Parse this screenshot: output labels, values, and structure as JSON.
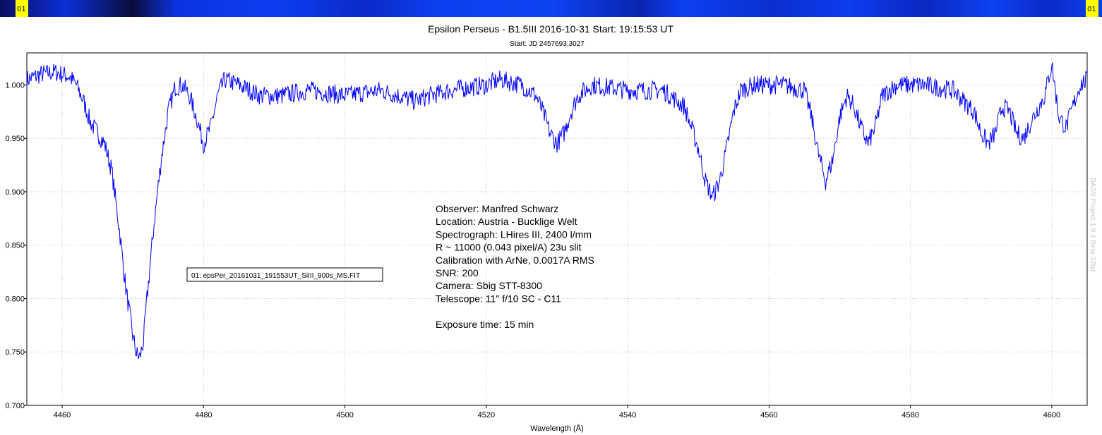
{
  "header": {
    "badge_left": "01",
    "badge_right": "01"
  },
  "watermark": "BASS Project 1.9.4 Beta 32bit",
  "legend": {
    "label": "01: epsPer_20161031_191553UT_SiIII_900s_MS.FIT"
  },
  "info_lines": [
    "Observer: Manfred Schwarz",
    "Location: Austria - Bucklige Welt",
    "Spectrograph: LHires III, 2400 l/mm",
    "R ~ 11000 (0.043 pixel/A) 23u slit",
    "Calibration with ArNe, 0.0017A RMS",
    "SNR: 200",
    "Camera: Sbig STT-8300",
    "Telescope: 11\" f/10 SC - C11",
    "",
    "Exposure time: 15 min"
  ],
  "colors": {
    "series": "#0000ff",
    "badge": "#ffff00"
  },
  "chart_data": {
    "type": "line",
    "title": "Epsilon Perseus - B1.5III 2016-10-31 Start: 19:15:53 UT",
    "subtitle": "Start: JD 2457693,3027",
    "xlabel": "Wavelength (Å)",
    "ylabel": "",
    "xlim": [
      4455,
      4605
    ],
    "ylim": [
      0.7,
      1.03
    ],
    "grid": true,
    "x_ticks": [
      4460,
      4480,
      4500,
      4520,
      4540,
      4560,
      4580,
      4600
    ],
    "x_tick_labels": [
      "4460",
      "4480",
      "4500",
      "4520",
      "4540",
      "4560",
      "4580",
      "4600"
    ],
    "y_ticks": [
      0.7,
      0.75,
      0.8,
      0.85,
      0.9,
      0.95,
      1.0
    ],
    "y_tick_labels": [
      "0.700",
      "0.750",
      "0.800",
      "0.850",
      "0.900",
      "0.950",
      "1.000"
    ],
    "series": [
      {
        "name": "01: epsPer_20161031_191553UT_SiIII_900s_MS.FIT",
        "x": [
          4455,
          4457,
          4459,
          4461,
          4462,
          4463,
          4464,
          4465,
          4466,
          4467,
          4468,
          4469,
          4470,
          4470.5,
          4471,
          4471.5,
          4472,
          4473,
          4474,
          4475,
          4476,
          4477,
          4478,
          4479,
          4480,
          4481,
          4482,
          4483,
          4485,
          4488,
          4491,
          4495,
          4500,
          4505,
          4510,
          4512,
          4515,
          4520,
          4522,
          4525,
          4527,
          4528,
          4529,
          4530,
          4531,
          4532,
          4533,
          4535,
          4540,
          4545,
          4548,
          4550,
          4551,
          4552,
          4553,
          4554,
          4555,
          4556,
          4558,
          4560,
          4562,
          4565,
          4566,
          4567,
          4568,
          4569,
          4570,
          4571,
          4572,
          4573,
          4574,
          4575,
          4576,
          4578,
          4582,
          4586,
          4589,
          4590,
          4591,
          4592,
          4593,
          4594,
          4595,
          4596,
          4597,
          4599,
          4600,
          4601,
          4602,
          4603,
          4604,
          4605
        ],
        "y": [
          1.005,
          1.01,
          1.012,
          1.008,
          1.0,
          0.985,
          0.965,
          0.955,
          0.945,
          0.92,
          0.87,
          0.81,
          0.765,
          0.748,
          0.745,
          0.76,
          0.8,
          0.87,
          0.93,
          0.975,
          0.998,
          1.0,
          0.99,
          0.97,
          0.945,
          0.96,
          0.99,
          1.005,
          1.0,
          0.99,
          0.99,
          0.995,
          0.99,
          0.995,
          0.985,
          0.99,
          0.995,
          1.0,
          1.005,
          1.0,
          0.99,
          0.975,
          0.955,
          0.945,
          0.955,
          0.975,
          0.99,
          1.0,
          0.995,
          0.995,
          0.98,
          0.94,
          0.91,
          0.895,
          0.91,
          0.94,
          0.975,
          0.995,
          1.0,
          1.0,
          1.0,
          0.995,
          0.97,
          0.935,
          0.91,
          0.93,
          0.97,
          0.99,
          0.98,
          0.96,
          0.945,
          0.96,
          0.99,
          1.0,
          1.0,
          0.995,
          0.975,
          0.955,
          0.945,
          0.955,
          0.98,
          0.975,
          0.955,
          0.95,
          0.965,
          0.99,
          1.02,
          0.97,
          0.96,
          0.98,
          1.0,
          1.005
        ]
      }
    ]
  }
}
